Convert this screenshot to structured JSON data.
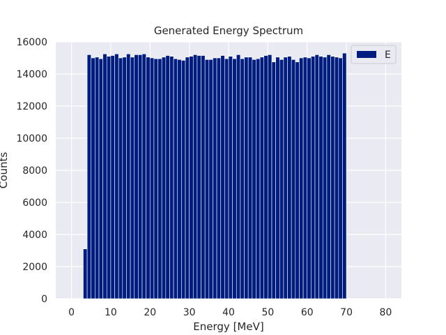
{
  "chart_data": {
    "type": "bar",
    "title": "Generated Energy Spectrum",
    "xlabel": "Energy [MeV]",
    "ylabel": "Counts",
    "xlim": [
      -4,
      84
    ],
    "ylim": [
      0,
      16000
    ],
    "xticks": [
      0,
      10,
      20,
      30,
      40,
      50,
      60,
      70,
      80
    ],
    "yticks": [
      0,
      2000,
      4000,
      6000,
      8000,
      10000,
      12000,
      14000,
      16000
    ],
    "grid": true,
    "legend_position": "top-right",
    "bar_color": "#001c7f",
    "background_color": "#eaeaf2",
    "bin_start": 3,
    "bin_width": 1,
    "series": [
      {
        "name": "E",
        "values": [
          3100,
          15200,
          15000,
          15050,
          14950,
          15250,
          15100,
          15150,
          15250,
          15000,
          15050,
          15250,
          15050,
          15200,
          15200,
          15250,
          15050,
          15000,
          14950,
          14950,
          15050,
          15150,
          15100,
          14950,
          14900,
          14850,
          15050,
          15100,
          15200,
          15150,
          15150,
          14900,
          14900,
          15000,
          15000,
          15150,
          14950,
          15100,
          14950,
          15200,
          14950,
          15050,
          15050,
          14900,
          14950,
          15050,
          15150,
          15200,
          14750,
          15050,
          14900,
          15050,
          15100,
          14900,
          14750,
          15000,
          15050,
          15000,
          15100,
          15200,
          15100,
          15050,
          15200,
          15100,
          15050,
          15000,
          15300
        ]
      }
    ]
  }
}
